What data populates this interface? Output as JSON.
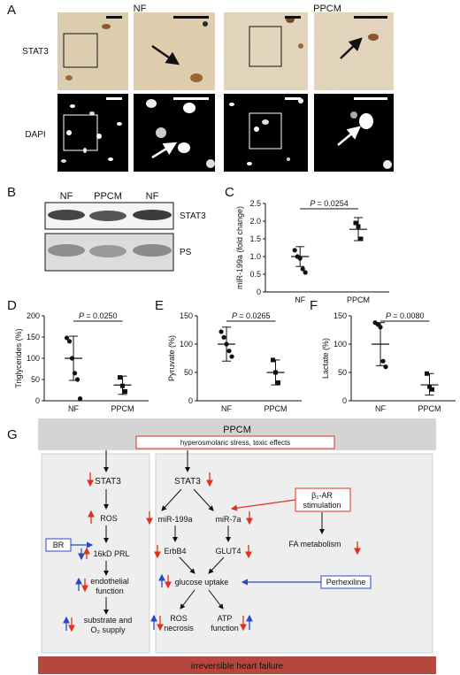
{
  "panel_a": {
    "label": "A",
    "col_nf": "NF",
    "col_ppcm": "PPCM",
    "row_stat3": "STAT3",
    "row_dapi": "DAPI"
  },
  "panel_b": {
    "label": "B",
    "lanes": [
      "NF",
      "PPCM",
      "NF"
    ],
    "band_labels": [
      "STAT3",
      "PS"
    ]
  },
  "charts": {
    "C": {
      "label": "C",
      "pvalue": "= 0.0254",
      "ylabel": "miR-199a (fold change)"
    },
    "D": {
      "label": "D",
      "pvalue": "= 0.0250",
      "ylabel": "Triglycerides (%)"
    },
    "E": {
      "label": "E",
      "pvalue": "= 0.0265",
      "ylabel": "Pyruvate (%)"
    },
    "F": {
      "label": "F",
      "pvalue": "= 0.0080",
      "ylabel": "Lactate (%)"
    }
  },
  "chart_data": [
    {
      "id": "C",
      "type": "scatter",
      "categories": [
        "NF",
        "PPCM"
      ],
      "ylabel": "miR-199a (fold change)",
      "ylim": [
        0,
        2.5
      ],
      "yticks": [
        "0",
        "0.5",
        "1.0",
        "1.5",
        "2.0",
        "2.5"
      ],
      "points": [
        [
          1.18,
          1.0,
          0.95,
          0.65,
          0.55
        ],
        [
          1.95,
          1.85,
          1.5
        ]
      ],
      "mean": [
        1.0,
        1.77
      ],
      "sd_low": [
        0.72,
        1.45
      ],
      "sd_high": [
        1.28,
        2.1
      ],
      "annotation": "P = 0.0254"
    },
    {
      "id": "D",
      "type": "scatter",
      "categories": [
        "NF",
        "PPCM"
      ],
      "ylabel": "Triglycerides (%)",
      "ylim": [
        0,
        200
      ],
      "yticks": [
        "0",
        "50",
        "100",
        "150",
        "200"
      ],
      "points": [
        [
          148,
          140,
          100,
          65,
          50,
          5
        ],
        [
          55,
          35,
          22
        ]
      ],
      "mean": [
        100,
        37
      ],
      "sd_low": [
        48,
        15
      ],
      "sd_high": [
        152,
        58
      ],
      "annotation": "P = 0.0250"
    },
    {
      "id": "E",
      "type": "scatter",
      "categories": [
        "NF",
        "PPCM"
      ],
      "ylabel": "Pyruvate (%)",
      "ylim": [
        0,
        150
      ],
      "yticks": [
        "0",
        "50",
        "100",
        "150"
      ],
      "points": [
        [
          122,
          112,
          100,
          88,
          78
        ],
        [
          72,
          50,
          32
        ]
      ],
      "mean": [
        100,
        50
      ],
      "sd_low": [
        70,
        28
      ],
      "sd_high": [
        130,
        72
      ],
      "annotation": "P = 0.0265"
    },
    {
      "id": "F",
      "type": "scatter",
      "categories": [
        "NF",
        "PPCM"
      ],
      "ylabel": "Lactate (%)",
      "ylim": [
        0,
        150
      ],
      "yticks": [
        "0",
        "50",
        "100",
        "150"
      ],
      "points": [
        [
          138,
          135,
          130,
          70,
          60
        ],
        [
          48,
          25,
          20
        ]
      ],
      "mean": [
        100,
        28
      ],
      "sd_low": [
        62,
        10
      ],
      "sd_high": [
        138,
        48
      ],
      "annotation": "P = 0.0080"
    }
  ],
  "panel_g": {
    "label": "G",
    "title": "PPCM",
    "subtitle": "hyperosmolaric stress, toxic effects",
    "stat3_left": "STAT3",
    "stat3_mid": "STAT3",
    "ros": "ROS",
    "br": "BR",
    "prl": "16kD PRL",
    "endo1": "endothelial",
    "endo2": "function",
    "sub1": "substrate and",
    "sub2": "O₂ supply",
    "mir199": "miR-199a",
    "mir7": "miR-7a",
    "erbb4": "ErbB4",
    "glut4": "GLUT4",
    "beta1": "β₁-AR",
    "beta2": "stimulation",
    "fa": "FA metabolism",
    "glucose": "glucose uptake",
    "perhex": "Perhexiline",
    "ros2a": "ROS",
    "ros2b": "necrosis",
    "atp1": "ATP",
    "atp2": "function",
    "footer": "irreversible heart failure"
  },
  "colors": {
    "red": "#e0301e",
    "blue": "#2848c8",
    "footer": "#b5473e"
  }
}
